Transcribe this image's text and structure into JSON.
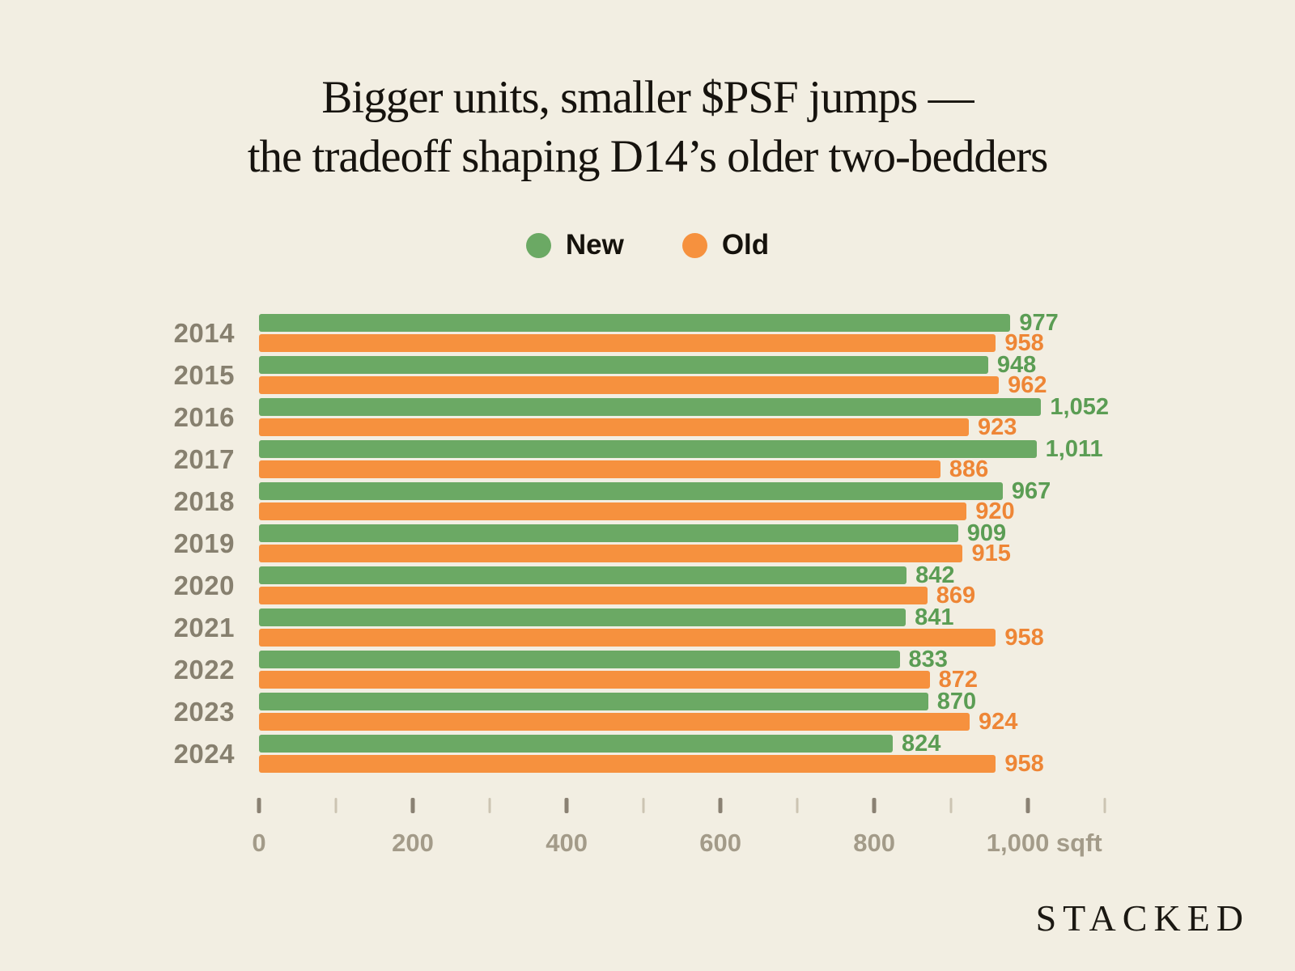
{
  "title": {
    "line1": "Bigger units, smaller $PSF jumps —",
    "line2": "the tradeoff shaping D14’s older two-bedders"
  },
  "legend": {
    "items": [
      {
        "label": "New",
        "color": "#6BA964"
      },
      {
        "label": "Old",
        "color": "#F6913E"
      }
    ]
  },
  "chart_data": {
    "type": "bar",
    "orientation": "horizontal",
    "title": "Bigger units, smaller $PSF jumps — the tradeoff shaping D14’s older two-bedders",
    "categories": [
      "2014",
      "2015",
      "2016",
      "2017",
      "2018",
      "2019",
      "2020",
      "2021",
      "2022",
      "2023",
      "2024"
    ],
    "series": [
      {
        "name": "New",
        "color": "#6BA964",
        "label_color": "#5B9D54",
        "values": [
          977,
          948,
          1052,
          1011,
          967,
          909,
          842,
          841,
          833,
          870,
          824
        ],
        "labels": [
          "977",
          "948",
          "1,052",
          "1,011",
          "967",
          "909",
          "842",
          "841",
          "833",
          "870",
          "824"
        ]
      },
      {
        "name": "Old",
        "color": "#F6913E",
        "label_color": "#EE8636",
        "values": [
          958,
          962,
          923,
          886,
          920,
          915,
          869,
          958,
          872,
          924,
          958
        ],
        "labels": [
          "958",
          "962",
          "923",
          "886",
          "920",
          "915",
          "869",
          "958",
          "872",
          "924",
          "958"
        ]
      }
    ],
    "xlabel": "sqft",
    "ylabel": "",
    "xlim": [
      0,
      1100
    ],
    "grid": false,
    "legend_position": "top",
    "axis": {
      "max_units": 1105,
      "ticks": [
        {
          "value": 0,
          "label": "0",
          "major": true
        },
        {
          "value": 100,
          "label": "",
          "major": false
        },
        {
          "value": 200,
          "label": "200",
          "major": true
        },
        {
          "value": 300,
          "label": "",
          "major": false
        },
        {
          "value": 400,
          "label": "400",
          "major": true
        },
        {
          "value": 500,
          "label": "",
          "major": false
        },
        {
          "value": 600,
          "label": "600",
          "major": true
        },
        {
          "value": 700,
          "label": "",
          "major": false
        },
        {
          "value": 800,
          "label": "800",
          "major": true
        },
        {
          "value": 900,
          "label": "",
          "major": false
        },
        {
          "value": 1000,
          "label": "1,000 sqft",
          "major": true
        },
        {
          "value": 1100,
          "label": "",
          "major": false
        }
      ]
    }
  },
  "logo": {
    "text": "STACKED"
  }
}
